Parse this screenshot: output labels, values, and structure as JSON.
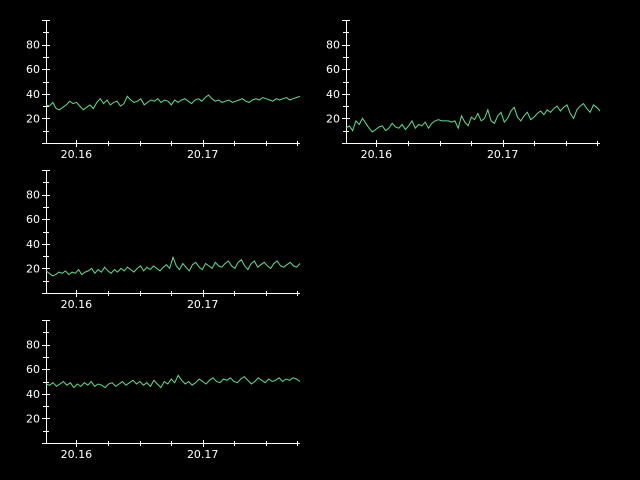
{
  "colors": {
    "background": "#000000",
    "axis": "#ffffff",
    "series": "#5ee08a"
  },
  "chart_data": [
    {
      "type": "line",
      "title": "",
      "xlabel": "",
      "ylabel": "",
      "xlim": [
        20.1576,
        20.1777
      ],
      "ylim": [
        0,
        100
      ],
      "y_tick_labels": [
        "20",
        "40",
        "60",
        "80"
      ],
      "y_tick_values": [
        20,
        40,
        60,
        80
      ],
      "x_tick_labels": [
        "20.16",
        "20.17"
      ],
      "x_tick_values": [
        20.16,
        20.17
      ],
      "grid": false,
      "series": [
        {
          "values": [
            31,
            30,
            33,
            28,
            27,
            29,
            31,
            34,
            32,
            33,
            30,
            27,
            29,
            31,
            28,
            33,
            36,
            32,
            35,
            31,
            33,
            34,
            30,
            32,
            38,
            35,
            33,
            34,
            36,
            31,
            33,
            35,
            34,
            36,
            33,
            35,
            34,
            31,
            35,
            33,
            35,
            36,
            34,
            32,
            35,
            36,
            34,
            37,
            39,
            36,
            34,
            35,
            33,
            34,
            35,
            33,
            34,
            35,
            36,
            34,
            33,
            35,
            36,
            35,
            37,
            36,
            35,
            34,
            36,
            35,
            36,
            37,
            35,
            36,
            37,
            38
          ]
        }
      ]
    },
    {
      "type": "line",
      "title": "",
      "xlabel": "",
      "ylabel": "",
      "xlim": [
        20.1576,
        20.1777
      ],
      "ylim": [
        0,
        100
      ],
      "y_tick_labels": [
        "20",
        "40",
        "60",
        "80"
      ],
      "y_tick_values": [
        20,
        40,
        60,
        80
      ],
      "x_tick_labels": [
        "20.16",
        "20.17"
      ],
      "x_tick_values": [
        20.16,
        20.17
      ],
      "grid": false,
      "series": [
        {
          "values": [
            12,
            14,
            10,
            18,
            15,
            20,
            16,
            12,
            9,
            11,
            13,
            14,
            10,
            12,
            16,
            13,
            12,
            15,
            11,
            14,
            18,
            12,
            15,
            14,
            17,
            12,
            16,
            18,
            19,
            18,
            18,
            18,
            17,
            18,
            12,
            22,
            17,
            14,
            21,
            19,
            24,
            18,
            20,
            27,
            18,
            16,
            22,
            25,
            17,
            20,
            26,
            29,
            21,
            18,
            22,
            25,
            19,
            21,
            24,
            26,
            23,
            27,
            25,
            28,
            30,
            26,
            29,
            31,
            24,
            20,
            27,
            30,
            32,
            28,
            25,
            31,
            29,
            26
          ]
        }
      ]
    },
    {
      "type": "line",
      "title": "",
      "xlabel": "",
      "ylabel": "",
      "xlim": [
        20.1576,
        20.1777
      ],
      "ylim": [
        0,
        100
      ],
      "y_tick_labels": [
        "20",
        "40",
        "60",
        "80"
      ],
      "y_tick_values": [
        20,
        40,
        60,
        80
      ],
      "x_tick_labels": [
        "20.16",
        "20.17"
      ],
      "x_tick_values": [
        20.16,
        20.17
      ],
      "grid": false,
      "series": [
        {
          "values": [
            18,
            16,
            14,
            15,
            17,
            16,
            18,
            15,
            17,
            16,
            19,
            15,
            17,
            18,
            20,
            16,
            19,
            17,
            21,
            18,
            16,
            19,
            17,
            20,
            18,
            21,
            19,
            17,
            20,
            22,
            18,
            21,
            19,
            22,
            20,
            18,
            21,
            23,
            20,
            29,
            22,
            19,
            24,
            21,
            18,
            23,
            25,
            21,
            19,
            24,
            22,
            20,
            25,
            22,
            21,
            24,
            26,
            22,
            20,
            25,
            27,
            22,
            19,
            24,
            26,
            21,
            23,
            25,
            22,
            20,
            24,
            26,
            22,
            21,
            23,
            25,
            22,
            21,
            24
          ]
        }
      ]
    },
    {
      "type": "line",
      "title": "",
      "xlabel": "",
      "ylabel": "",
      "xlim": [
        20.1576,
        20.1777
      ],
      "ylim": [
        0,
        100
      ],
      "y_tick_labels": [
        "20",
        "40",
        "60",
        "80"
      ],
      "y_tick_values": [
        20,
        40,
        60,
        80
      ],
      "x_tick_labels": [
        "20.16",
        "20.17"
      ],
      "x_tick_values": [
        20.16,
        20.17
      ],
      "grid": false,
      "series": [
        {
          "values": [
            48,
            47,
            49,
            46,
            48,
            50,
            47,
            49,
            45,
            48,
            46,
            49,
            47,
            50,
            46,
            48,
            47,
            45,
            48,
            49,
            46,
            48,
            50,
            47,
            49,
            51,
            48,
            50,
            47,
            49,
            46,
            51,
            48,
            45,
            50,
            48,
            52,
            49,
            55,
            51,
            48,
            50,
            47,
            49,
            52,
            50,
            48,
            51,
            53,
            50,
            49,
            52,
            51,
            53,
            50,
            49,
            52,
            54,
            51,
            48,
            50,
            53,
            51,
            49,
            52,
            50,
            51,
            53,
            50,
            52,
            51,
            53,
            52,
            50
          ]
        }
      ]
    }
  ]
}
